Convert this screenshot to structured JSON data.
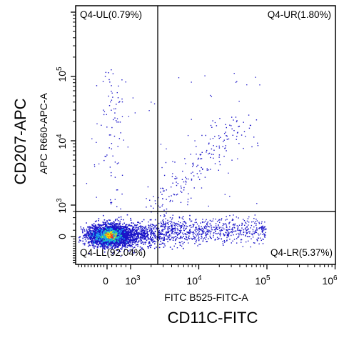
{
  "chart_data": {
    "type": "scatter",
    "outer_x_title": "CD11C-FITC",
    "outer_y_title": "CD207-APC",
    "xlabel": "FITC B525-FITC-A",
    "ylabel": "APC R660-APC-A",
    "x_scale": "biexponential",
    "y_scale": "biexponential",
    "x_ticks": [
      {
        "base": "0",
        "exp": ""
      },
      {
        "base": "10",
        "exp": "3"
      },
      {
        "base": "10",
        "exp": "4"
      },
      {
        "base": "10",
        "exp": "5"
      },
      {
        "base": "10",
        "exp": "6"
      }
    ],
    "y_ticks": [
      {
        "base": "0",
        "exp": ""
      },
      {
        "base": "10",
        "exp": "3"
      },
      {
        "base": "10",
        "exp": "4"
      },
      {
        "base": "10",
        "exp": "5"
      }
    ],
    "quadrant_gate": {
      "x": 2500,
      "y": 800
    },
    "quadrants": [
      {
        "id": "UL",
        "label": "Q4-UL(0.79%)",
        "percent": 0.79
      },
      {
        "id": "UR",
        "label": "Q4-UR(1.80%)",
        "percent": 1.8
      },
      {
        "id": "LL",
        "label": "Q4-LL(92.04%)",
        "percent": 92.04
      },
      {
        "id": "LR",
        "label": "Q4-LR(5.37%)",
        "percent": 5.37
      }
    ],
    "density_colors": [
      "#1a14c8",
      "#1fa0f0",
      "#22d6a0",
      "#f2e600",
      "#ff5a00",
      "#ff2020"
    ],
    "grid": false,
    "legend": "none"
  }
}
